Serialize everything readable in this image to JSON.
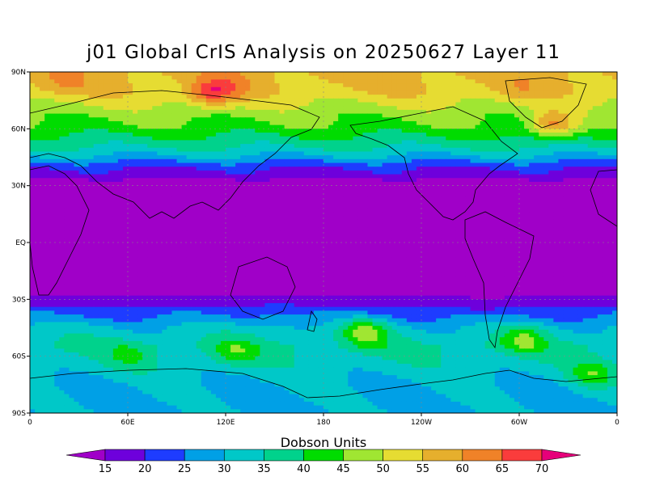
{
  "chart_data": {
    "type": "heatmap",
    "title": "j01 Global CrIS Analysis on 20250627 Layer 11",
    "x_ticks": [
      "0",
      "60E",
      "120E",
      "180",
      "120W",
      "60W",
      "0"
    ],
    "y_ticks": [
      "90N",
      "60N",
      "30N",
      "EQ",
      "30S",
      "60S",
      "90S"
    ],
    "lon_range": [
      0,
      360
    ],
    "lat_range": [
      -90,
      90
    ],
    "grid": true,
    "colorbar": {
      "label": "Dobson Units",
      "levels": [
        15,
        20,
        25,
        30,
        35,
        40,
        45,
        50,
        55,
        60,
        65,
        70
      ],
      "colors": [
        "#a000c8",
        "#6e00dc",
        "#1e3cff",
        "#00a0e6",
        "#00c8c8",
        "#00d28c",
        "#00dc00",
        "#a0e632",
        "#e6dc32",
        "#e6af2d",
        "#f08228",
        "#fa3c3c",
        "#e60000",
        "#e6007a"
      ]
    },
    "latitude_bands": [
      {
        "lat": 90,
        "value": 57
      },
      {
        "lat": 80,
        "value": 55
      },
      {
        "lat": 70,
        "value": 48
      },
      {
        "lat": 60,
        "value": 43
      },
      {
        "lat": 50,
        "value": 35
      },
      {
        "lat": 45,
        "value": 29
      },
      {
        "lat": 40,
        "value": 21
      },
      {
        "lat": 35,
        "value": 16
      },
      {
        "lat": 30,
        "value": 13
      },
      {
        "lat": 0,
        "value": 12
      },
      {
        "lat": -25,
        "value": 13
      },
      {
        "lat": -32,
        "value": 18
      },
      {
        "lat": -38,
        "value": 24
      },
      {
        "lat": -45,
        "value": 31
      },
      {
        "lat": -55,
        "value": 36
      },
      {
        "lat": -65,
        "value": 33
      },
      {
        "lat": -75,
        "value": 30
      },
      {
        "lat": -90,
        "value": 29
      }
    ],
    "anomalies": [
      {
        "lon": 110,
        "lat": 78,
        "value": 65
      },
      {
        "lon": 120,
        "lat": 82,
        "value": 62
      },
      {
        "lon": 20,
        "lat": 84,
        "value": 60
      },
      {
        "lon": 320,
        "lat": 62,
        "value": 61
      },
      {
        "lon": 300,
        "lat": 80,
        "value": 58
      },
      {
        "lon": 125,
        "lat": -58,
        "value": 44
      },
      {
        "lon": 206,
        "lat": -47,
        "value": 47
      },
      {
        "lon": 302,
        "lat": -51,
        "value": 45
      },
      {
        "lon": 345,
        "lat": -70,
        "value": 43
      },
      {
        "lon": 62,
        "lat": -60,
        "value": 40
      },
      {
        "lon": 152,
        "lat": -40,
        "value": 30
      },
      {
        "lon": 278,
        "lat": -32,
        "value": 16
      }
    ]
  }
}
